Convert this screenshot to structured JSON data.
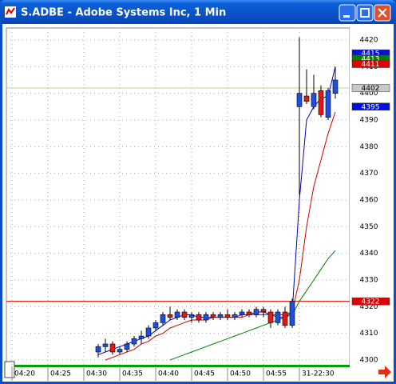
{
  "window_title": "S.ADBE - Adobe Systems Inc, 1 Min",
  "chart_data": {
    "type": "candlestick",
    "categories": [
      "04:20",
      null,
      null,
      null,
      null,
      "04:25",
      null,
      null,
      null,
      null,
      "04:30",
      null,
      null,
      null,
      null,
      "04:35",
      null,
      null,
      null,
      null,
      "04:40",
      null,
      null,
      null,
      null,
      "04:45",
      null,
      null,
      null,
      null,
      "04:50",
      null,
      null,
      null,
      null,
      "04:55",
      null,
      null,
      null,
      null,
      "31-22:30",
      null,
      null,
      null,
      null,
      null
    ],
    "open": [
      null,
      null,
      null,
      null,
      null,
      null,
      null,
      null,
      null,
      null,
      null,
      null,
      4303,
      4305,
      4306,
      4303,
      4304,
      4306,
      4308,
      4309,
      4312,
      4314,
      4317,
      4316,
      4318,
      4316,
      4317,
      4315,
      4317,
      4316,
      4317,
      4316,
      4317,
      4318,
      4317,
      4319,
      4318,
      4314,
      4318,
      4313,
      4395,
      4399,
      4395,
      4401,
      4391,
      4400
    ],
    "high": [
      null,
      null,
      null,
      null,
      null,
      null,
      null,
      null,
      null,
      null,
      null,
      null,
      4306,
      4308,
      4307,
      4305,
      4307,
      4309,
      4311,
      4313,
      4315,
      4318,
      4320,
      4319,
      4319,
      4318,
      4318,
      4318,
      4318,
      4318,
      4319,
      4318,
      4319,
      4319,
      4320,
      4320,
      4319,
      4319,
      4320,
      4323,
      4421,
      4409,
      4407,
      4403,
      4402,
      4410
    ],
    "low": [
      null,
      null,
      null,
      null,
      null,
      null,
      null,
      null,
      null,
      null,
      null,
      null,
      4301,
      4303,
      4302,
      4302,
      4303,
      4305,
      4306,
      4308,
      4311,
      4313,
      4315,
      4315,
      4315,
      4314,
      4314,
      4314,
      4315,
      4315,
      4315,
      4315,
      4316,
      4316,
      4316,
      4316,
      4312,
      4313,
      4312,
      4312,
      4362,
      4396,
      4394,
      4391,
      4390,
      4398
    ],
    "close": [
      null,
      null,
      null,
      null,
      null,
      null,
      null,
      null,
      null,
      null,
      null,
      null,
      4305,
      4306,
      4303,
      4304,
      4306,
      4308,
      4309,
      4312,
      4314,
      4317,
      4316,
      4318,
      4316,
      4317,
      4315,
      4317,
      4316,
      4317,
      4316,
      4317,
      4318,
      4317,
      4319,
      4318,
      4314,
      4318,
      4313,
      4322,
      4400,
      4397,
      4400,
      4392,
      4401,
      4405
    ],
    "up_color": "#1f4fe0",
    "down_color": "#e01818",
    "series": [
      {
        "color": "#0000c0",
        "values": [
          null,
          null,
          null,
          null,
          null,
          null,
          null,
          null,
          null,
          null,
          null,
          null,
          4302,
          4303,
          4304,
          4305,
          4306,
          4307,
          4308,
          4309,
          4311,
          4313,
          4315,
          4316,
          4317,
          4317,
          4316,
          4316,
          4316,
          4316,
          4316,
          4316,
          4317,
          4317,
          4318,
          4318,
          4317,
          4316,
          4316,
          4318,
          4360,
          4390,
          4395,
          4398,
          4399,
          4410
        ]
      },
      {
        "color": "#d00000",
        "values": [
          null,
          null,
          null,
          null,
          null,
          null,
          null,
          null,
          null,
          null,
          null,
          null,
          null,
          4300,
          4301,
          4302,
          4303,
          4304,
          4306,
          4307,
          4309,
          4310,
          4312,
          4313,
          4314,
          4315,
          4315,
          4315,
          4316,
          4316,
          4316,
          4316,
          4316,
          4317,
          4317,
          4317,
          4317,
          4317,
          4317,
          4318,
          4330,
          4350,
          4365,
          4375,
          4385,
          4393
        ]
      },
      {
        "color": "#008000",
        "values": [
          null,
          null,
          null,
          null,
          null,
          null,
          null,
          null,
          null,
          null,
          null,
          null,
          null,
          null,
          null,
          null,
          null,
          null,
          null,
          null,
          null,
          null,
          4300,
          4301,
          4302,
          4303,
          4304,
          4305,
          4306,
          4307,
          4308,
          4309,
          4310,
          4311,
          4312,
          4313,
          4314,
          4315,
          4316,
          4317,
          4322,
          4326,
          4330,
          4334,
          4338,
          4341
        ]
      }
    ],
    "hlines": [
      {
        "value": 4402,
        "color": "#b8d890"
      },
      {
        "value": 4322,
        "color": "#e00000"
      }
    ],
    "markers": [
      {
        "value": 4415,
        "color": "#0010e0"
      },
      {
        "value": 4413,
        "color": "#008000"
      },
      {
        "value": 4411,
        "color": "#e00000"
      },
      {
        "value": 4402,
        "color": "#c8c8c8"
      },
      {
        "value": 4395,
        "color": "#0010e0"
      },
      {
        "value": 4322,
        "color": "#e00000"
      }
    ],
    "ylim": [
      4297.6,
      4424.5
    ],
    "yticks": [
      4300,
      4310,
      4320,
      4330,
      4340,
      4350,
      4360,
      4370,
      4380,
      4390,
      4400,
      4410,
      4420
    ],
    "grid": true
  }
}
